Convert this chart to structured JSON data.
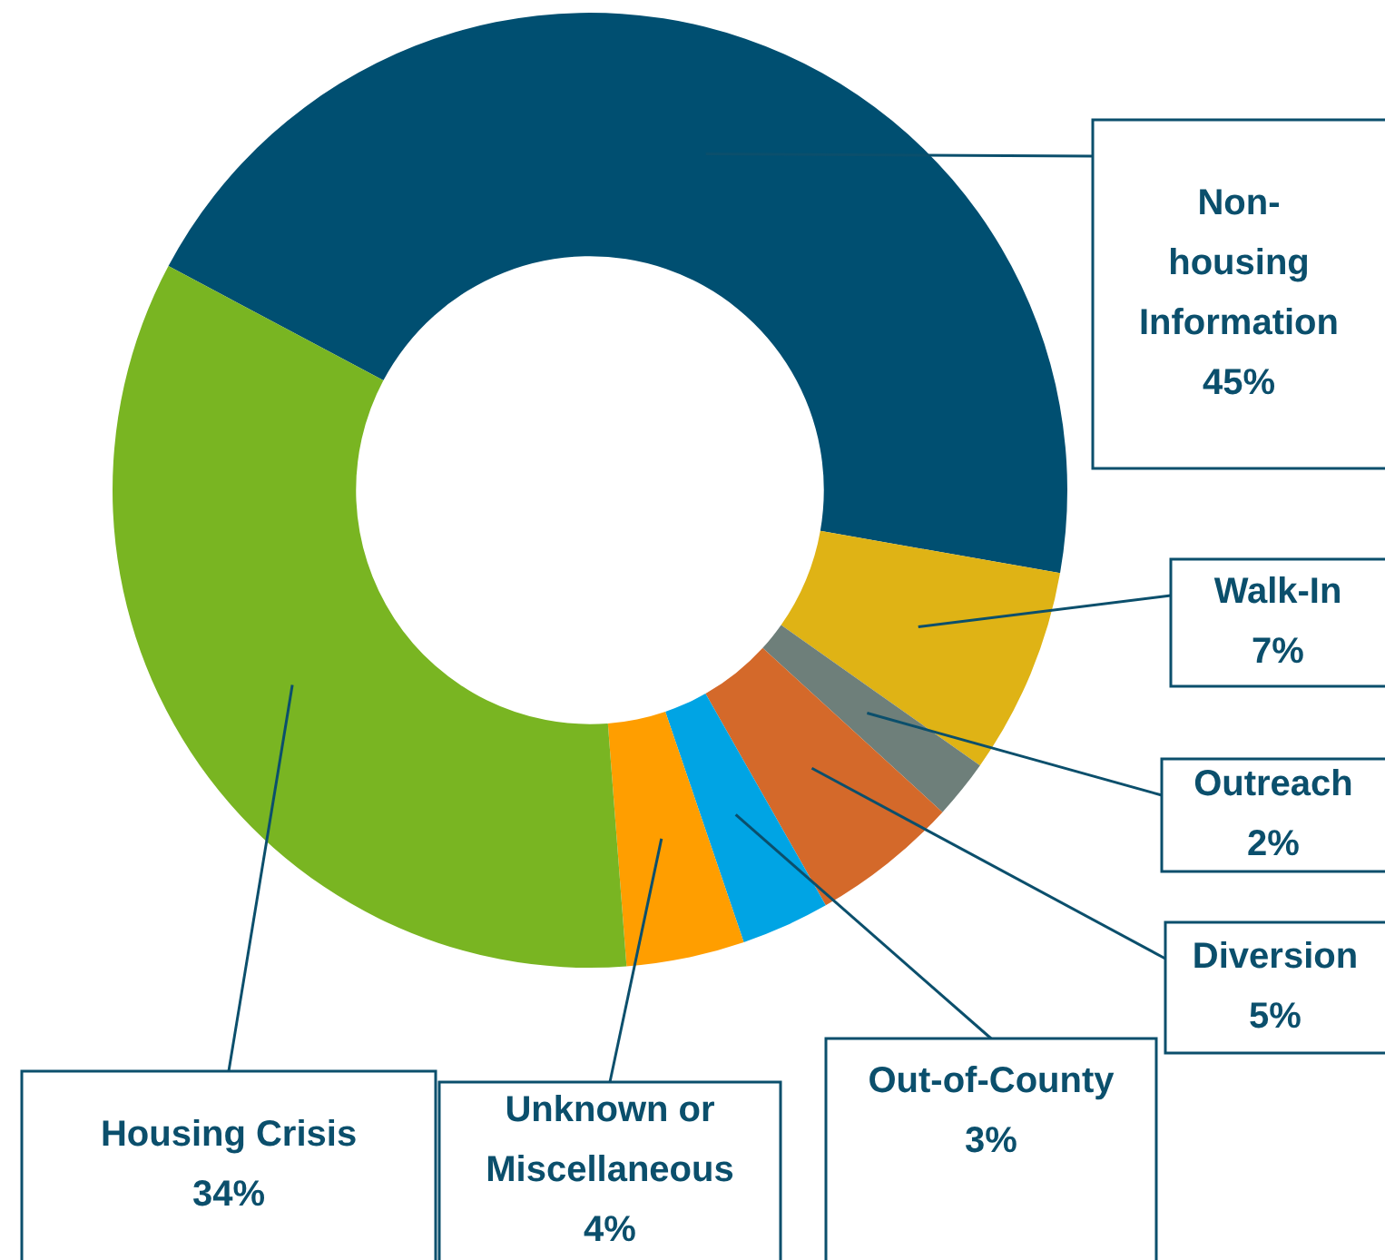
{
  "chart_data": {
    "type": "donut",
    "categories": [
      "Non-housing Information",
      "Walk-In",
      "Outreach",
      "Diversion",
      "Out-of-County",
      "Unknown or Miscellaneous",
      "Housing Crisis"
    ],
    "values": [
      45,
      7,
      2,
      5,
      3,
      4,
      34
    ],
    "value_labels": [
      "45%",
      "7%",
      "2%",
      "5%",
      "3%",
      "4%",
      "34%"
    ],
    "colors": [
      "#004f71",
      "#dfb315",
      "#6e7f7a",
      "#d4692a",
      "#00a4e4",
      "#ff9e00",
      "#79b522"
    ],
    "legend": false
  }
}
